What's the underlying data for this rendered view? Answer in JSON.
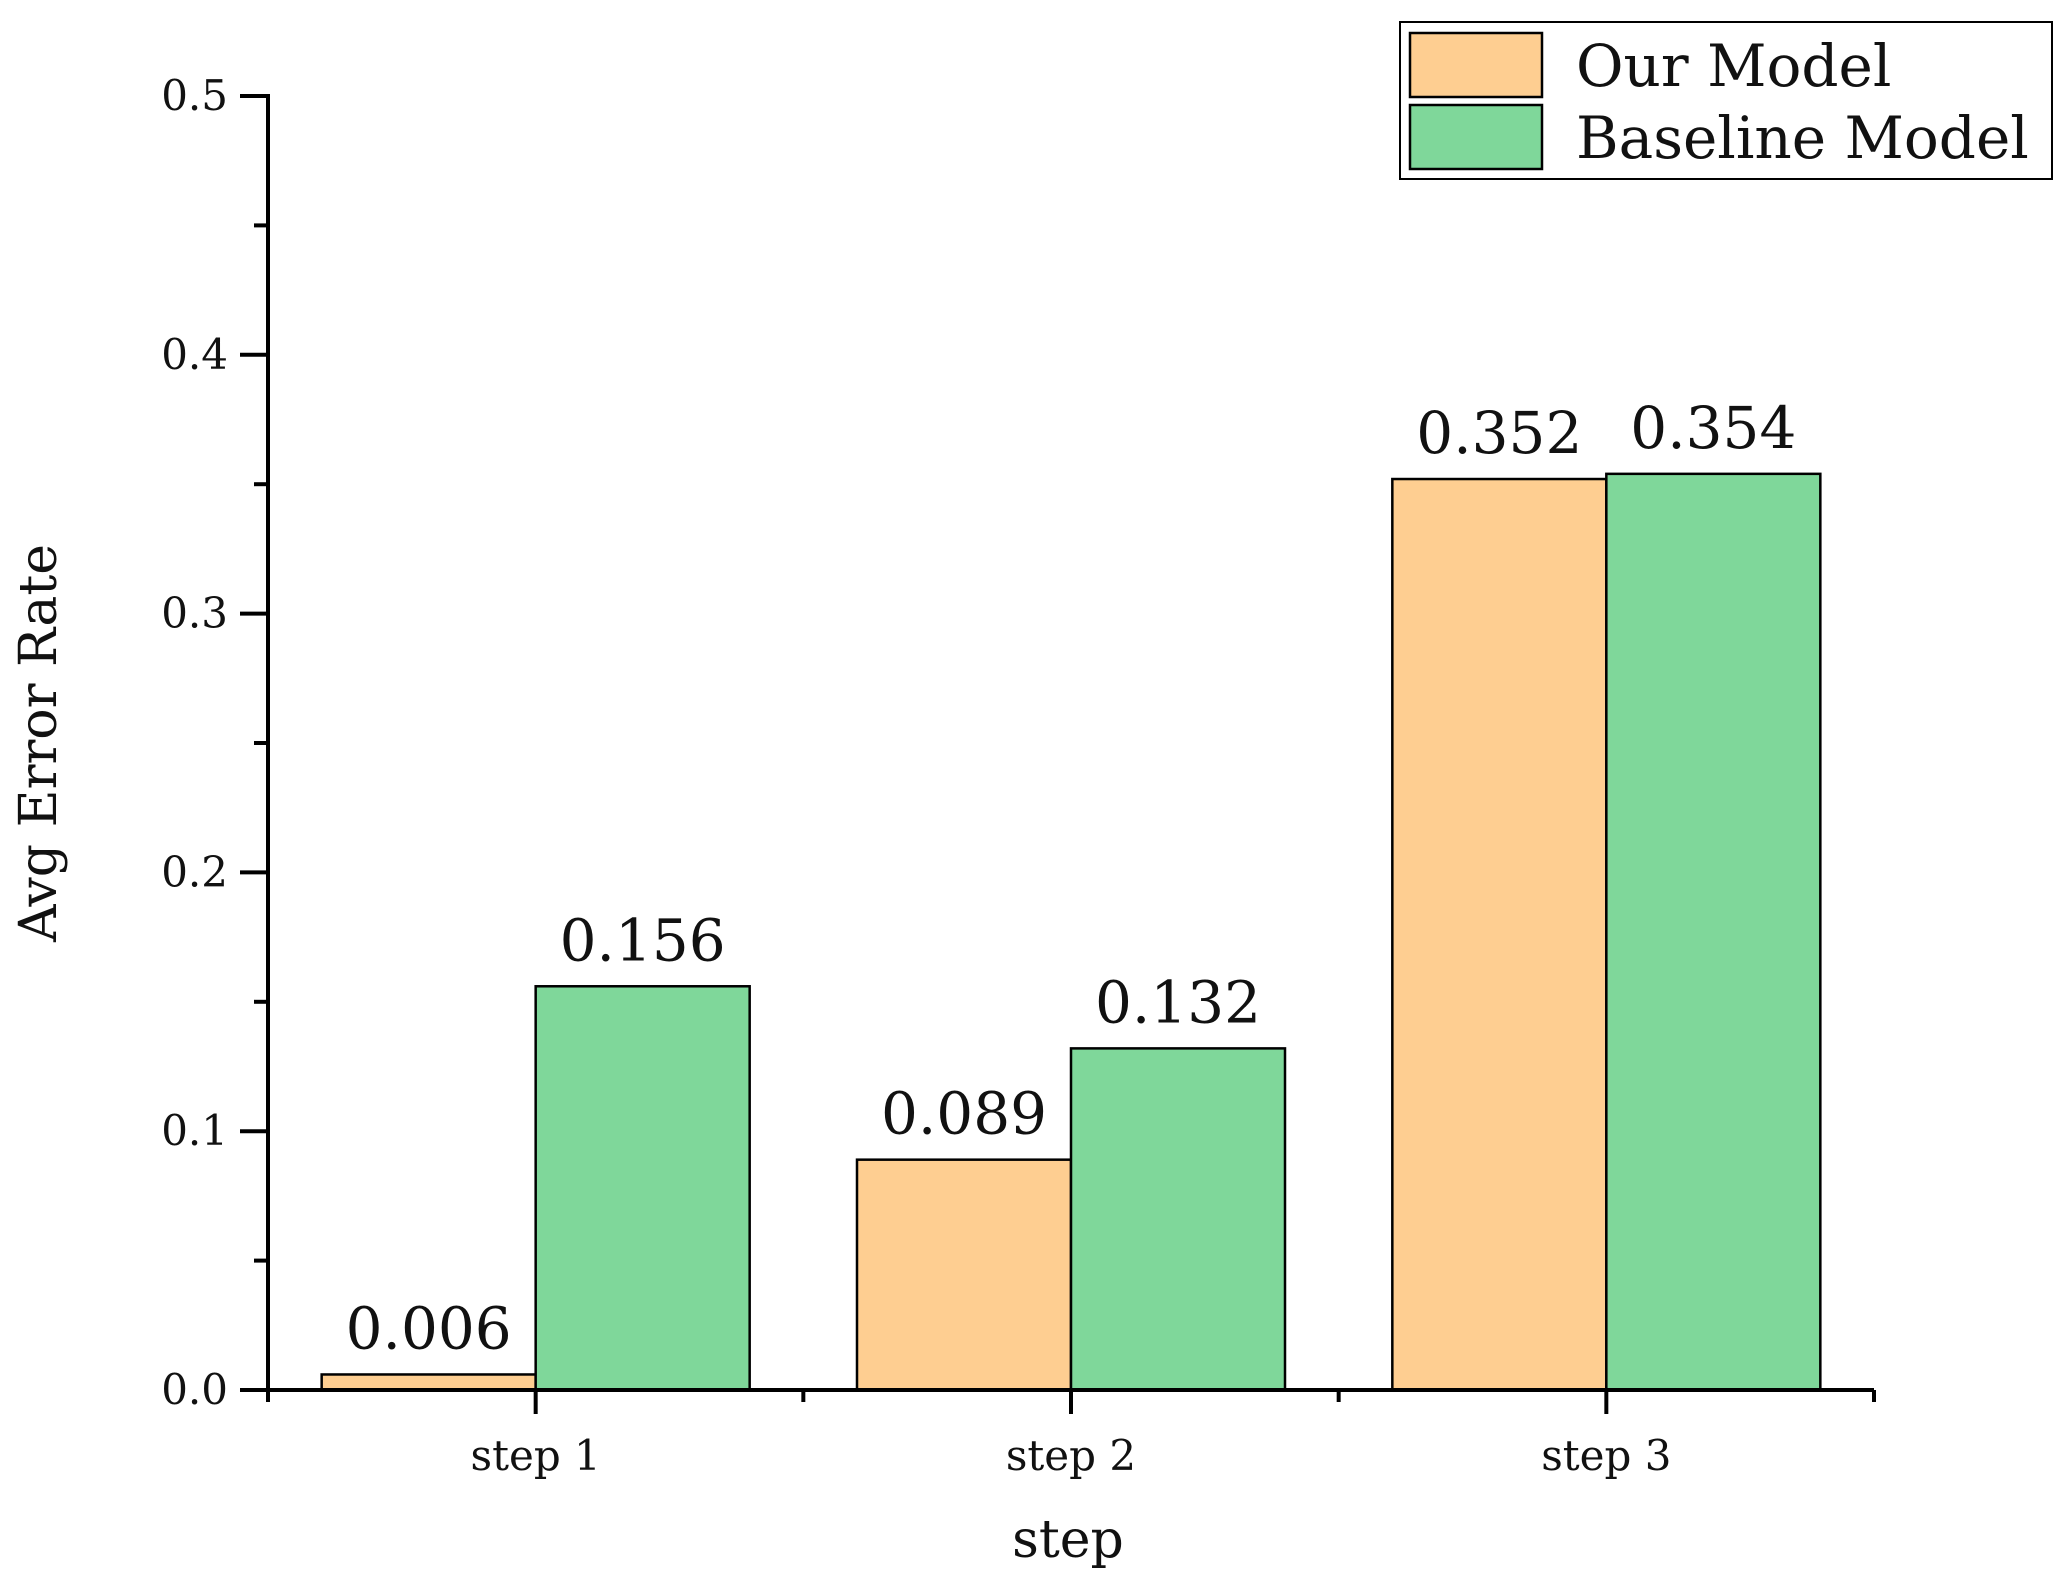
{
  "chart_data": {
    "type": "bar",
    "categories": [
      "step 1",
      "step 2",
      "step 3"
    ],
    "series": [
      {
        "name": "Our Model",
        "values": [
          0.006,
          0.089,
          0.352
        ],
        "labels": [
          "0.006",
          "0.089",
          "0.352"
        ],
        "color": "#FECE91"
      },
      {
        "name": "Baseline Model",
        "values": [
          0.156,
          0.132,
          0.354
        ],
        "labels": [
          "0.156",
          "0.132",
          "0.354"
        ],
        "color": "#7FD79A"
      }
    ],
    "xlabel": "step",
    "ylabel": "Avg Error Rate",
    "ylim": [
      0,
      0.5
    ],
    "yticks": [
      "0.0",
      "0.1",
      "0.2",
      "0.3",
      "0.4",
      "0.5"
    ],
    "grid": false,
    "legend_position": "top-right"
  }
}
